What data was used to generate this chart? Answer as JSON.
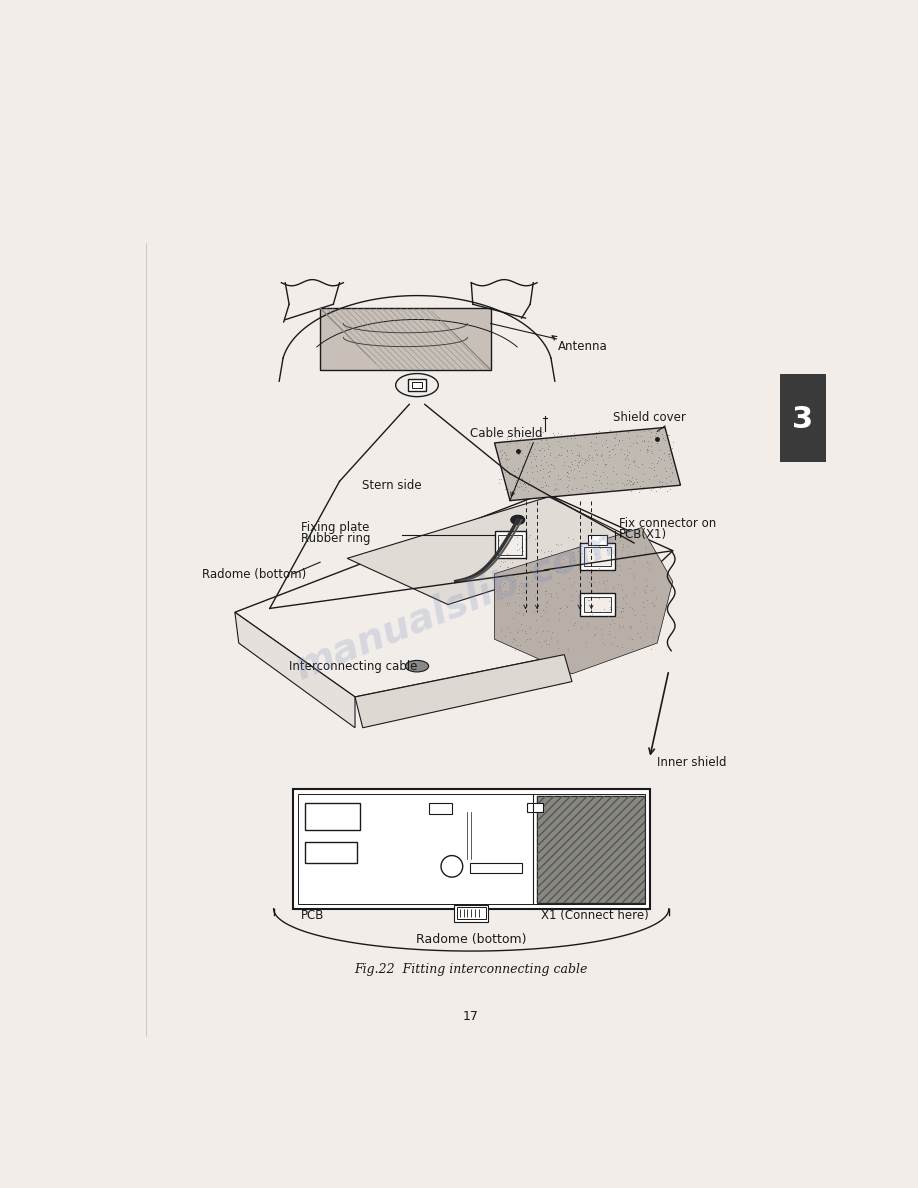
{
  "background_color": "#f2ede9",
  "page_number": "17",
  "figure_caption": "Fig.22  Fitting interconnecting cable",
  "tab_color": "#3a3a3a",
  "tab_number": "3",
  "watermark_text": "manualslib.com",
  "watermark_color": "#7788bb",
  "watermark_alpha": 0.22,
  "lc": "#1a1a1a",
  "labels": {
    "antenna": "Antenna",
    "stern_side": "Stern side",
    "shield_cover": "Shield cover",
    "cable_shield": "Cable shield",
    "fixing_plate": "Fixing plate",
    "rubber_ring": "Rubber ring",
    "radome_bottom_left": "Radome (bottom)",
    "fix_connector_l1": "Fix connector on",
    "fix_connector_l2": "PCB(X1)",
    "interconnecting_cable": "Interconnecting cable",
    "inner_shield": "Inner shield",
    "pcb": "PCB",
    "x1_connect": "X1 (Connect here)",
    "radome_bottom_bottom": "Radome (bottom)"
  }
}
